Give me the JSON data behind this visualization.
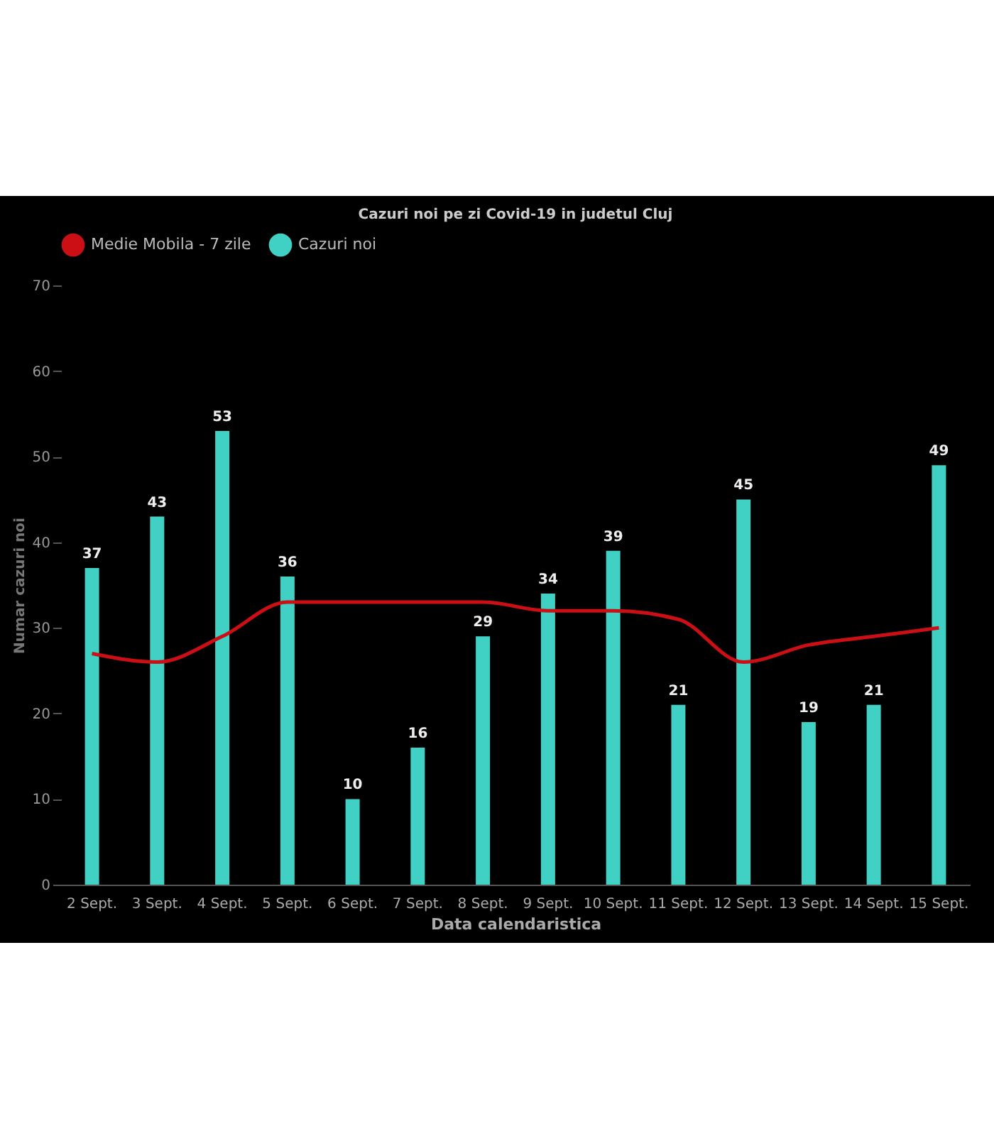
{
  "chart_data": {
    "type": "bar",
    "title": "Cazuri noi pe zi Covid-19 in judetul Cluj",
    "xlabel": "Data calendaristica",
    "ylabel": "Numar cazuri noi",
    "categories": [
      "2 Sept.",
      "3 Sept.",
      "4 Sept.",
      "5 Sept.",
      "6 Sept.",
      "7 Sept.",
      "8 Sept.",
      "9 Sept.",
      "10 Sept.",
      "11 Sept.",
      "12 Sept.",
      "13 Sept.",
      "14 Sept.",
      "15 Sept."
    ],
    "series": [
      {
        "name": "Medie Mobila - 7 zile",
        "type": "line",
        "color": "#cc0f14",
        "values": [
          27,
          26,
          29,
          33,
          33,
          33,
          33,
          32,
          32,
          31,
          26,
          28,
          29,
          30
        ]
      },
      {
        "name": "Cazuri noi",
        "type": "bar",
        "color": "#40d0c4",
        "values": [
          37,
          43,
          53,
          36,
          10,
          16,
          29,
          34,
          39,
          21,
          45,
          19,
          21,
          49
        ],
        "value_labels": [
          "37",
          "43",
          "53",
          "36",
          "10",
          "16",
          "29",
          "34",
          "39",
          "21",
          "45",
          "19",
          "21",
          "49"
        ]
      }
    ],
    "ylim": [
      0,
      70
    ],
    "yticks": [
      0,
      10,
      20,
      30,
      40,
      50,
      60,
      70
    ],
    "legend": "top",
    "grid": false
  }
}
